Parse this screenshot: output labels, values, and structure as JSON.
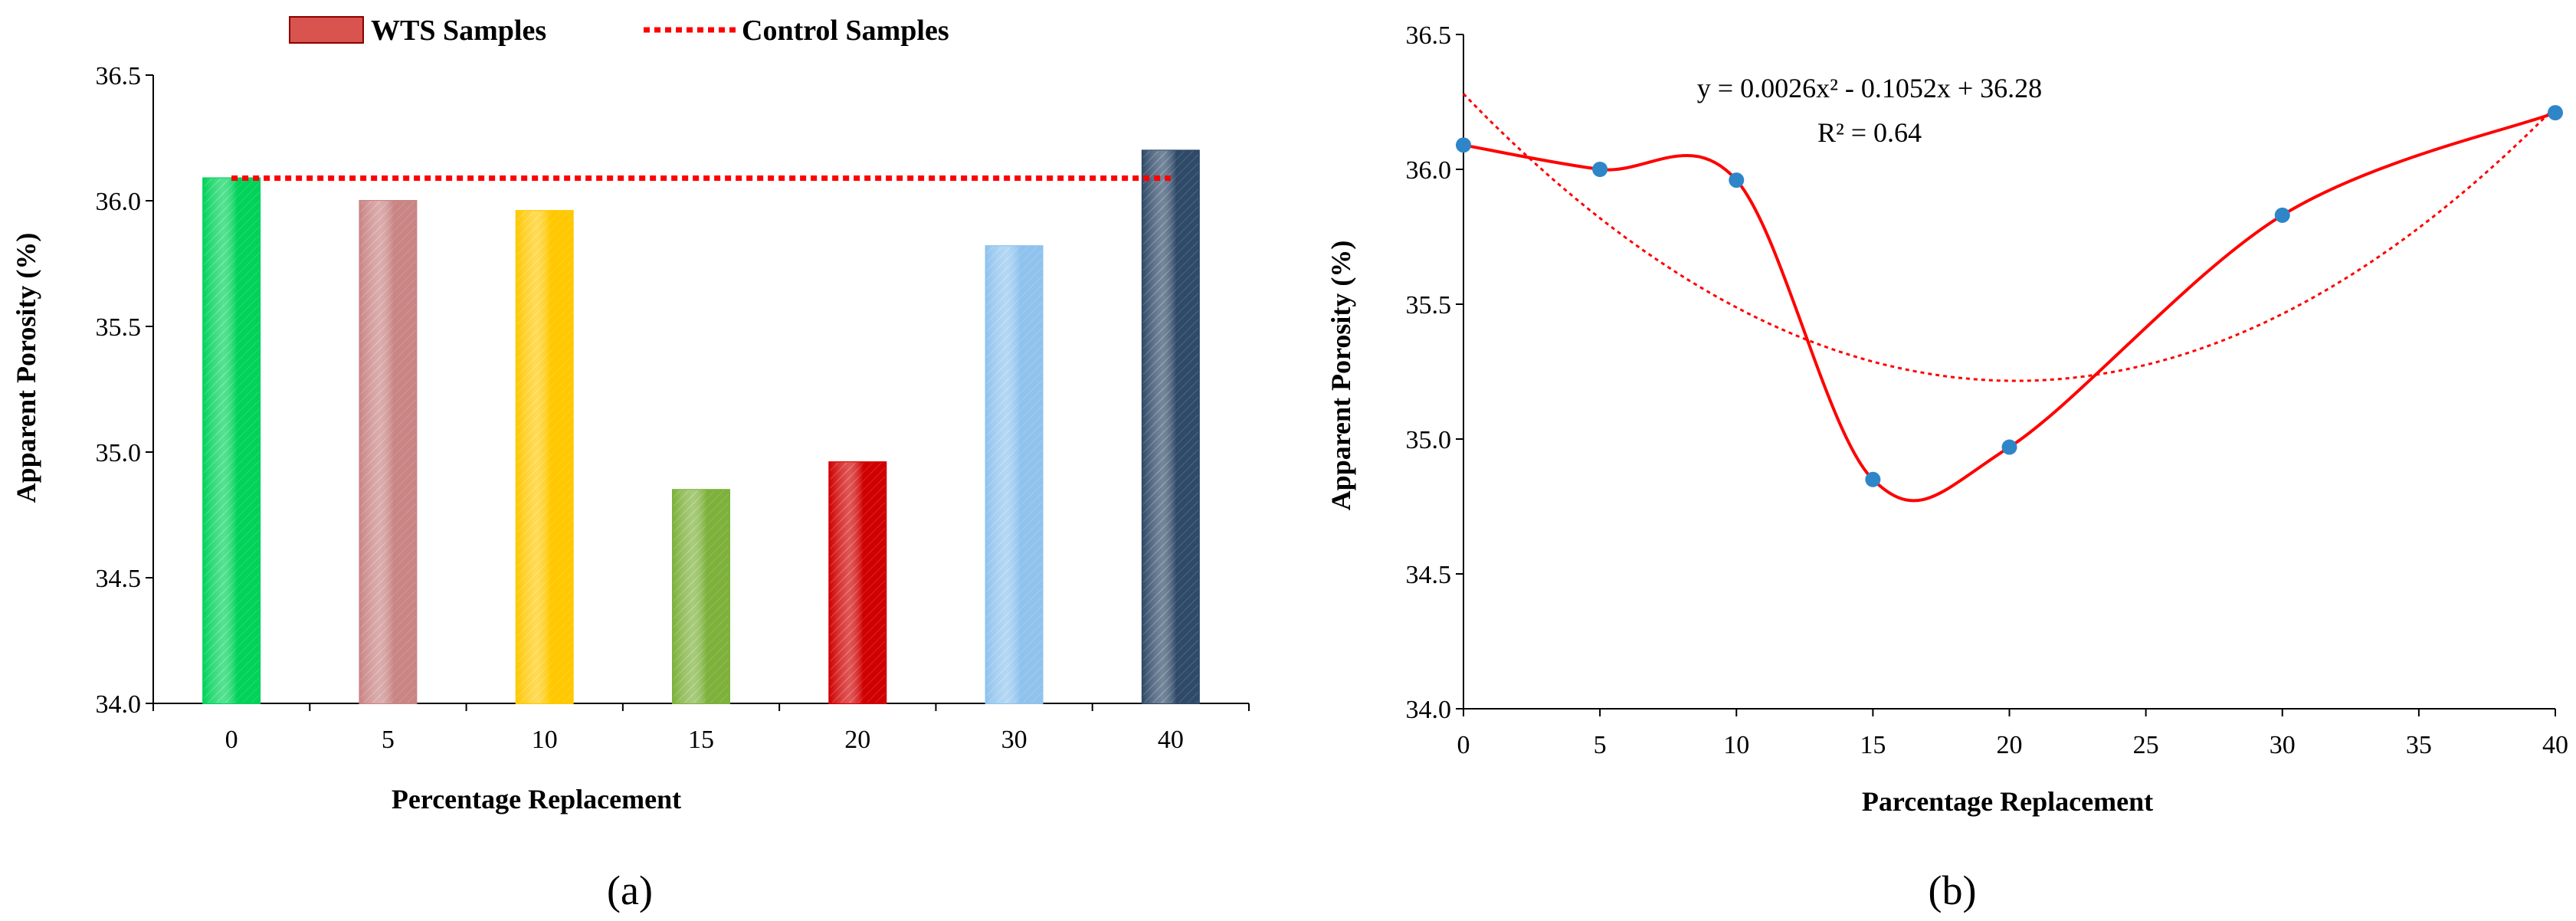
{
  "chart_data": [
    {
      "type": "bar",
      "panel_label": "(a)",
      "categories": [
        "0",
        "5",
        "10",
        "15",
        "20",
        "30",
        "40"
      ],
      "values": [
        36.09,
        36.0,
        35.96,
        34.85,
        34.96,
        35.82,
        36.2
      ],
      "bar_colors": [
        "#00d25a",
        "#c98484",
        "#ffc800",
        "#7db13b",
        "#d00000",
        "#8fc3ee",
        "#2f4a68"
      ],
      "series": [
        {
          "name": "WTS Samples",
          "values": [
            36.09,
            36.0,
            35.96,
            34.85,
            34.96,
            35.82,
            36.2
          ]
        },
        {
          "name": "Control Samples",
          "values": [
            36.09,
            36.09,
            36.09,
            36.09,
            36.09,
            36.09,
            36.09
          ]
        }
      ],
      "control_value": 36.09,
      "legend": [
        "WTS Samples",
        "Control Samples"
      ],
      "legend_position": "top",
      "xlabel": "Percentage Replacement",
      "ylabel": "Apparent Porosity (%)",
      "ylim": [
        34.0,
        36.5
      ],
      "yticks": [
        "34.0",
        "34.5",
        "35.0",
        "35.5",
        "36.0",
        "36.5"
      ]
    },
    {
      "type": "scatter",
      "panel_label": "(b)",
      "x": [
        0,
        5,
        10,
        15,
        20,
        30,
        40
      ],
      "y": [
        36.09,
        36.0,
        35.96,
        34.85,
        34.97,
        35.83,
        36.21
      ],
      "trendline": {
        "kind": "polynomial",
        "coefficients": [
          0.0026,
          -0.1052,
          36.28
        ]
      },
      "equation": "y = 0.0026x² - 0.1052x + 36.28",
      "r_squared": "R² = 0.64",
      "xlabel": "Parcentage Replacement",
      "ylabel": "Apparent Porosity (%)",
      "xlim": [
        0,
        40
      ],
      "ylim": [
        34.0,
        36.5
      ],
      "xticks": [
        "0",
        "5",
        "10",
        "15",
        "20",
        "25",
        "30",
        "35",
        "40"
      ],
      "yticks": [
        "34.0",
        "34.5",
        "35.0",
        "35.5",
        "36.0",
        "36.5"
      ],
      "colors": {
        "curve": "#ff0000",
        "marker": "#2e86c8"
      }
    }
  ]
}
